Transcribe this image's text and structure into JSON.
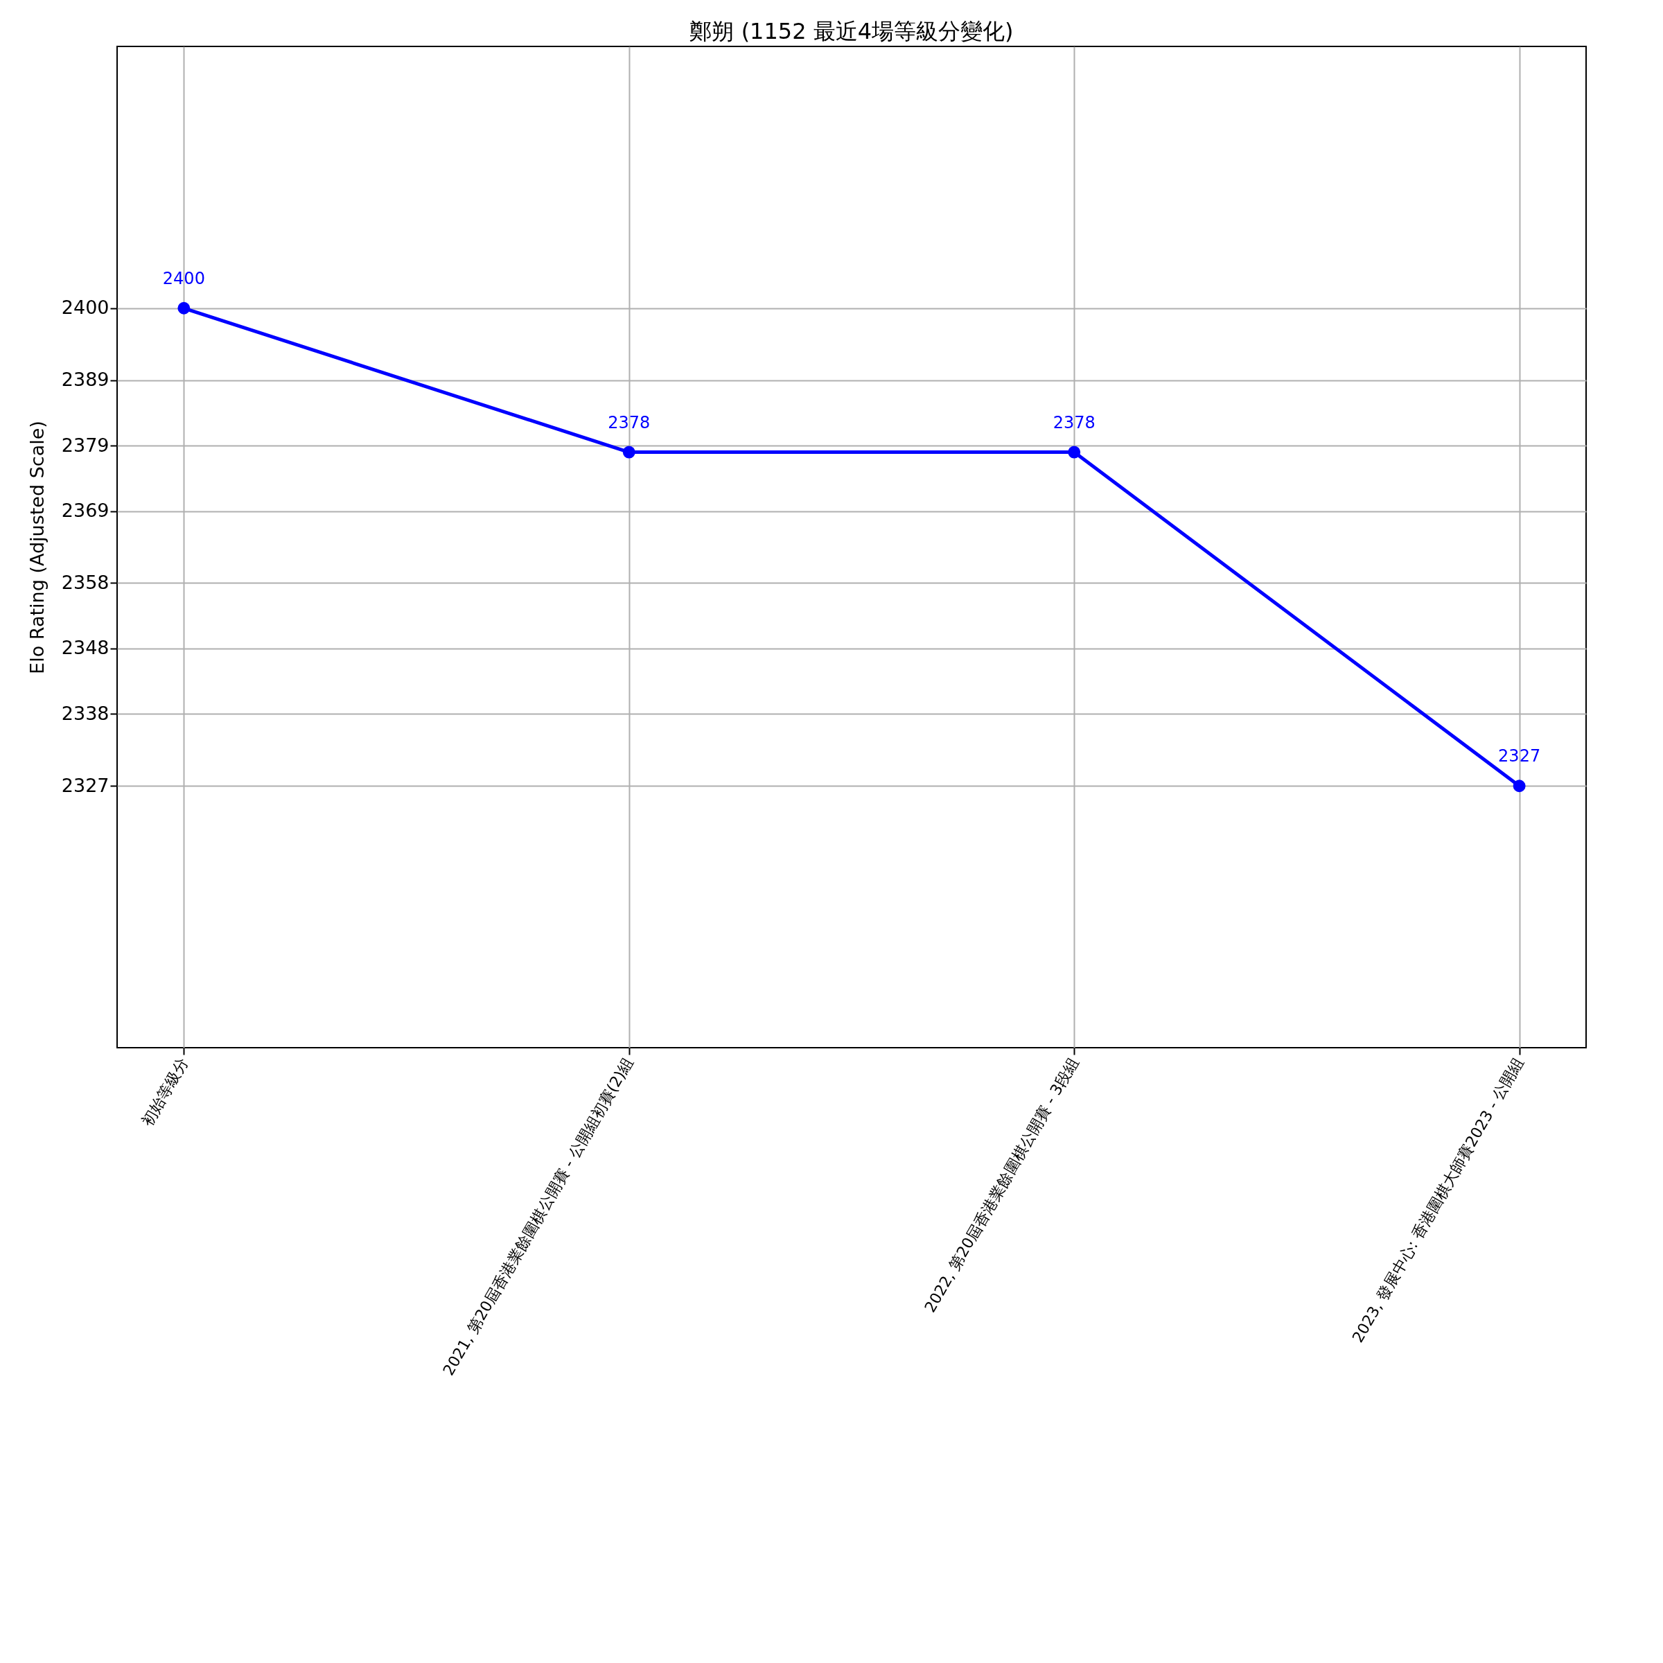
{
  "chart_data": {
    "type": "line",
    "title": "鄭朔 (1152 最近4場等級分變化)",
    "ylabel": "Elo Rating (Adjusted Scale)",
    "categories": [
      "初始等級分",
      "2021, 第20屆香港業餘圍棋公開賽 - 公開組初賽(2)組",
      "2022, 第20屆香港業餘圍棋公開賽 - 3段組",
      "2023, 發展中心: 香港圍棋大師賽2023 - 公開組"
    ],
    "series": [
      {
        "color": "#0000ff",
        "values": [
          2400,
          2378,
          2378,
          2327
        ]
      }
    ],
    "ylim": [
      2287,
      2440
    ],
    "yticks": [
      2327,
      2338,
      2348,
      2358,
      2369,
      2379,
      2389,
      2400
    ],
    "grid": true,
    "marker": "circle",
    "line_style": "solid",
    "data_labels": true
  }
}
